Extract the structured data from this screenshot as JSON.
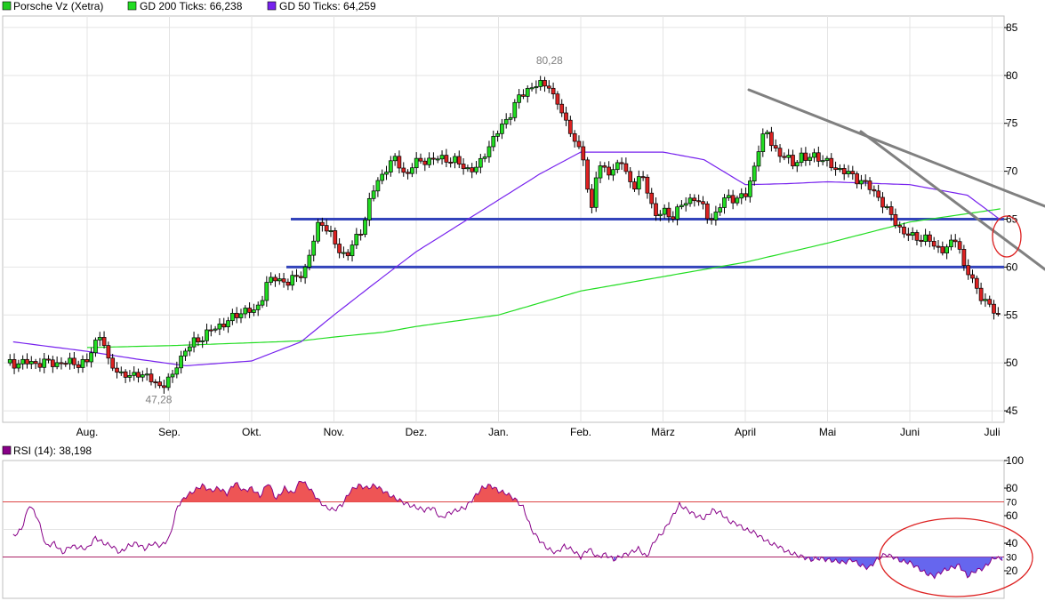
{
  "legend": {
    "price": {
      "label": "Porsche Vz (Xetra)",
      "color": "#22cc22"
    },
    "gd200": {
      "label": "GD 200 Ticks: 66,238",
      "color": "#22dd22"
    },
    "gd50": {
      "label": "GD 50 Ticks: 64,259",
      "color": "#7722ee"
    },
    "rsi": {
      "label": "RSI (14): 38,198",
      "color": "#880088"
    }
  },
  "chart_data": [
    {
      "type": "candlestick",
      "title": "Porsche Vz (Xetra)",
      "x_months": [
        "Aug.",
        "Sep.",
        "Okt.",
        "Nov.",
        "Dez.",
        "Jan.",
        "Feb.",
        "März",
        "April",
        "Mai",
        "Juni",
        "Juli"
      ],
      "y_ticks": [
        45,
        50,
        55,
        60,
        65,
        70,
        75,
        80,
        85
      ],
      "ylim": [
        43.8,
        86.2
      ],
      "max_label": "80,28",
      "min_label": "47,28",
      "support_lines": [
        65,
        60
      ],
      "series": [
        {
          "name": "Porsche Vz (Xetra)",
          "kind": "close",
          "anchors": [
            [
              0,
              50.0
            ],
            [
              0.04,
              51.0
            ],
            [
              0.08,
              51.5
            ],
            [
              0.12,
              52.8
            ],
            [
              0.18,
              53.3
            ],
            [
              0.24,
              50.0
            ],
            [
              0.32,
              49.6
            ],
            [
              0.4,
              49.0
            ],
            [
              0.52,
              48.4
            ],
            [
              0.62,
              49.1
            ],
            [
              0.75,
              48.3
            ],
            [
              0.87,
              47.7
            ],
            [
              0.97,
              47.9
            ],
            [
              1.04,
              48.6
            ],
            [
              1.1,
              50.2
            ],
            [
              1.2,
              51.3
            ],
            [
              1.3,
              52.2
            ],
            [
              1.45,
              53.0
            ],
            [
              1.6,
              53.9
            ],
            [
              1.75,
              54.5
            ],
            [
              1.9,
              55.6
            ],
            [
              2.05,
              55.2
            ],
            [
              2.18,
              58.3
            ],
            [
              2.3,
              58.8
            ],
            [
              2.45,
              58.4
            ],
            [
              2.55,
              58.9
            ],
            [
              2.66,
              60.0
            ],
            [
              2.73,
              62.0
            ],
            [
              2.83,
              65.0
            ],
            [
              2.93,
              63.9
            ],
            [
              3.05,
              61.7
            ],
            [
              3.15,
              61.3
            ],
            [
              3.25,
              62.5
            ],
            [
              3.35,
              64.2
            ],
            [
              3.45,
              67.6
            ],
            [
              3.55,
              69.0
            ],
            [
              3.65,
              70.7
            ],
            [
              3.75,
              71.2
            ],
            [
              3.87,
              69.5
            ],
            [
              3.95,
              70.6
            ],
            [
              4.1,
              71.2
            ],
            [
              4.2,
              71.2
            ],
            [
              4.35,
              71.4
            ],
            [
              4.5,
              70.9
            ],
            [
              4.6,
              70.3
            ],
            [
              4.75,
              70.2
            ],
            [
              4.85,
              72.3
            ],
            [
              4.95,
              73.5
            ],
            [
              5.05,
              74.8
            ],
            [
              5.15,
              76.2
            ],
            [
              5.25,
              77.6
            ],
            [
              5.35,
              78.6
            ],
            [
              5.45,
              79.0
            ],
            [
              5.55,
              78.9
            ],
            [
              5.62,
              79.2
            ],
            [
              5.68,
              77.4
            ],
            [
              5.75,
              76.5
            ],
            [
              5.82,
              75.1
            ],
            [
              5.9,
              74.0
            ],
            [
              5.97,
              72.1
            ],
            [
              6.05,
              71.0
            ],
            [
              6.12,
              65.2
            ],
            [
              6.2,
              70.5
            ],
            [
              6.3,
              70.0
            ],
            [
              6.4,
              70.3
            ],
            [
              6.5,
              70.9
            ],
            [
              6.58,
              69.1
            ],
            [
              6.66,
              68.6
            ],
            [
              6.74,
              69.4
            ],
            [
              6.82,
              67.9
            ],
            [
              6.9,
              65.4
            ],
            [
              7.0,
              65.7
            ],
            [
              7.1,
              65.3
            ],
            [
              7.2,
              66.2
            ],
            [
              7.3,
              66.8
            ],
            [
              7.4,
              67.5
            ],
            [
              7.48,
              66.1
            ],
            [
              7.56,
              64.9
            ],
            [
              7.64,
              65.6
            ],
            [
              7.72,
              66.8
            ],
            [
              7.82,
              67.3
            ],
            [
              7.92,
              67.2
            ],
            [
              8.02,
              67.5
            ],
            [
              8.1,
              70.3
            ],
            [
              8.18,
              73.1
            ],
            [
              8.26,
              73.9
            ],
            [
              8.34,
              72.8
            ],
            [
              8.42,
              71.6
            ],
            [
              8.5,
              71.4
            ],
            [
              8.58,
              70.8
            ],
            [
              8.66,
              71.7
            ],
            [
              8.74,
              71.0
            ],
            [
              8.82,
              71.9
            ],
            [
              8.9,
              71.4
            ],
            [
              8.98,
              70.8
            ],
            [
              9.06,
              70.6
            ],
            [
              9.14,
              70.2
            ],
            [
              9.22,
              69.8
            ],
            [
              9.32,
              69.5
            ],
            [
              9.42,
              68.9
            ],
            [
              9.52,
              68.2
            ],
            [
              9.62,
              67.4
            ],
            [
              9.72,
              65.8
            ],
            [
              9.82,
              64.9
            ],
            [
              9.92,
              63.5
            ],
            [
              10.02,
              63.2
            ],
            [
              10.12,
              63.1
            ],
            [
              10.22,
              62.8
            ],
            [
              10.32,
              62.1
            ],
            [
              10.42,
              61.8
            ],
            [
              10.52,
              62.4
            ],
            [
              10.58,
              63.5
            ],
            [
              10.64,
              60.2
            ],
            [
              10.72,
              59.2
            ],
            [
              10.82,
              57.6
            ],
            [
              10.9,
              56.7
            ],
            [
              10.98,
              55.6
            ],
            [
              11.04,
              55.3
            ],
            [
              11.1,
              54.9
            ],
            [
              11.16,
              55.0
            ],
            [
              11.22,
              57.1
            ]
          ]
        },
        {
          "name": "GD 200 Ticks",
          "value": 66.238,
          "color": "#22dd22",
          "anchors": [
            [
              0,
              51.6
            ],
            [
              1,
              51.8
            ],
            [
              2,
              52.1
            ],
            [
              2.6,
              52.3
            ],
            [
              3.0,
              52.7
            ],
            [
              3.6,
              53.2
            ],
            [
              4.0,
              53.8
            ],
            [
              5.0,
              55.0
            ],
            [
              6.0,
              57.5
            ],
            [
              7.0,
              59.0
            ],
            [
              8.0,
              60.5
            ],
            [
              9.0,
              62.5
            ],
            [
              10.0,
              64.7
            ],
            [
              11.2,
              66.2
            ]
          ]
        },
        {
          "name": "GD 50 Ticks",
          "value": 64.259,
          "color": "#7722ee",
          "anchors": [
            [
              -0.9,
              52.2
            ],
            [
              0,
              51.2
            ],
            [
              0.6,
              50.4
            ],
            [
              1.2,
              49.7
            ],
            [
              2.0,
              50.2
            ],
            [
              2.6,
              52.2
            ],
            [
              3.0,
              55.0
            ],
            [
              3.6,
              59.0
            ],
            [
              4.0,
              61.6
            ],
            [
              5.0,
              67.0
            ],
            [
              5.5,
              69.7
            ],
            [
              6.0,
              72.0
            ],
            [
              7.0,
              72.0
            ],
            [
              7.5,
              71.2
            ],
            [
              8.0,
              68.6
            ],
            [
              8.5,
              68.7
            ],
            [
              9.0,
              68.9
            ],
            [
              10.0,
              68.6
            ],
            [
              10.7,
              67.5
            ],
            [
              11.2,
              64.3
            ]
          ]
        }
      ]
    },
    {
      "type": "line",
      "title": "RSI (14)",
      "y_ticks": [
        20,
        40,
        60,
        80,
        100
      ],
      "ylim": [
        0,
        100
      ],
      "overbought": 70,
      "oversold": 30,
      "last_value": 38.198,
      "anchors": [
        [
          -0.9,
          45
        ],
        [
          -0.8,
          50
        ],
        [
          -0.7,
          68
        ],
        [
          -0.6,
          58
        ],
        [
          -0.5,
          38
        ],
        [
          -0.4,
          40
        ],
        [
          -0.3,
          33
        ],
        [
          -0.2,
          38
        ],
        [
          -0.1,
          37
        ],
        [
          0.0,
          36
        ],
        [
          0.1,
          44
        ],
        [
          0.2,
          40
        ],
        [
          0.3,
          38
        ],
        [
          0.4,
          33
        ],
        [
          0.5,
          38
        ],
        [
          0.6,
          40
        ],
        [
          0.7,
          36
        ],
        [
          0.8,
          40
        ],
        [
          0.9,
          38
        ],
        [
          1.0,
          44
        ],
        [
          1.1,
          67
        ],
        [
          1.2,
          74
        ],
        [
          1.3,
          78
        ],
        [
          1.4,
          82
        ],
        [
          1.5,
          78
        ],
        [
          1.6,
          80
        ],
        [
          1.7,
          76
        ],
        [
          1.8,
          84
        ],
        [
          1.9,
          78
        ],
        [
          2.0,
          80
        ],
        [
          2.1,
          74
        ],
        [
          2.2,
          84
        ],
        [
          2.3,
          72
        ],
        [
          2.4,
          80
        ],
        [
          2.5,
          76
        ],
        [
          2.6,
          86
        ],
        [
          2.7,
          80
        ],
        [
          2.8,
          72
        ],
        [
          2.9,
          66
        ],
        [
          3.0,
          64
        ],
        [
          3.1,
          68
        ],
        [
          3.2,
          78
        ],
        [
          3.3,
          82
        ],
        [
          3.4,
          80
        ],
        [
          3.5,
          82
        ],
        [
          3.6,
          78
        ],
        [
          3.7,
          74
        ],
        [
          3.8,
          71
        ],
        [
          3.9,
          68
        ],
        [
          4.0,
          66
        ],
        [
          4.1,
          64
        ],
        [
          4.2,
          66
        ],
        [
          4.3,
          58
        ],
        [
          4.4,
          62
        ],
        [
          4.5,
          64
        ],
        [
          4.6,
          66
        ],
        [
          4.7,
          73
        ],
        [
          4.8,
          80
        ],
        [
          4.9,
          82
        ],
        [
          5.0,
          78
        ],
        [
          5.1,
          76
        ],
        [
          5.2,
          72
        ],
        [
          5.3,
          66
        ],
        [
          5.4,
          50
        ],
        [
          5.5,
          42
        ],
        [
          5.6,
          36
        ],
        [
          5.7,
          33
        ],
        [
          5.8,
          38
        ],
        [
          5.9,
          35
        ],
        [
          6.0,
          30
        ],
        [
          6.1,
          36
        ],
        [
          6.2,
          30
        ],
        [
          6.3,
          32
        ],
        [
          6.4,
          28
        ],
        [
          6.5,
          31
        ],
        [
          6.6,
          33
        ],
        [
          6.7,
          36
        ],
        [
          6.8,
          30
        ],
        [
          6.9,
          42
        ],
        [
          7.0,
          48
        ],
        [
          7.1,
          58
        ],
        [
          7.2,
          68
        ],
        [
          7.3,
          64
        ],
        [
          7.4,
          60
        ],
        [
          7.5,
          58
        ],
        [
          7.6,
          64
        ],
        [
          7.7,
          62
        ],
        [
          7.8,
          56
        ],
        [
          7.9,
          54
        ],
        [
          8.0,
          50
        ],
        [
          8.1,
          48
        ],
        [
          8.2,
          44
        ],
        [
          8.3,
          40
        ],
        [
          8.4,
          38
        ],
        [
          8.5,
          34
        ],
        [
          8.6,
          32
        ],
        [
          8.7,
          30
        ],
        [
          8.8,
          28
        ],
        [
          8.9,
          29
        ],
        [
          9.0,
          28
        ],
        [
          9.1,
          27
        ],
        [
          9.2,
          26
        ],
        [
          9.3,
          28
        ],
        [
          9.4,
          24
        ],
        [
          9.5,
          22
        ],
        [
          9.6,
          28
        ],
        [
          9.7,
          32
        ],
        [
          9.8,
          30
        ],
        [
          9.9,
          27
        ],
        [
          10.0,
          26
        ],
        [
          10.1,
          22
        ],
        [
          10.2,
          18
        ],
        [
          10.3,
          16
        ],
        [
          10.4,
          20
        ],
        [
          10.5,
          22
        ],
        [
          10.6,
          24
        ],
        [
          10.7,
          16
        ],
        [
          10.8,
          20
        ],
        [
          10.9,
          22
        ],
        [
          11.0,
          28
        ],
        [
          11.05,
          30
        ],
        [
          11.1,
          28
        ],
        [
          11.15,
          30
        ],
        [
          11.22,
          38
        ]
      ]
    }
  ]
}
